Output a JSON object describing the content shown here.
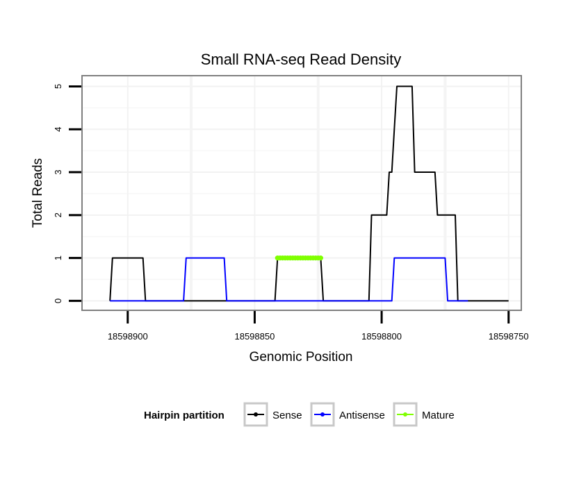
{
  "chart_data": {
    "type": "line",
    "title": "Small RNA-seq Read Density",
    "xlabel": "Genomic Position",
    "ylabel": "Total Reads",
    "xlim": [
      18598918,
      18598745
    ],
    "ylim": [
      -0.22,
      5.25
    ],
    "x_reversed": true,
    "x_ticks": [
      18598900,
      18598850,
      18598800,
      18598750
    ],
    "x_tick_labels": [
      "18598900",
      "18598850",
      "18598800",
      "18598750"
    ],
    "x_minor_gridlines": [
      18598875,
      18598825,
      18598775
    ],
    "y_ticks": [
      0,
      1,
      2,
      3,
      4,
      5
    ],
    "y_tick_labels": [
      "0",
      "1",
      "2",
      "3",
      "4",
      "5"
    ],
    "grid": true,
    "legend": {
      "title": "Hairpin partition",
      "position": "bottom",
      "entries": [
        "Sense",
        "Antisense",
        "Mature"
      ]
    },
    "series": [
      {
        "name": "Sense",
        "color": "#000000",
        "points": [
          [
            18598907,
            0
          ],
          [
            18598906,
            1
          ],
          [
            18598894,
            1
          ],
          [
            18598893,
            0
          ],
          [
            18598883,
            0
          ],
          [
            18598872,
            0
          ],
          [
            18598871,
            0
          ],
          [
            18598862,
            0
          ],
          [
            18598861,
            0
          ],
          [
            18598849,
            0
          ],
          [
            18598848,
            0
          ],
          [
            18598842,
            0
          ],
          [
            18598841,
            1
          ],
          [
            18598824,
            1
          ],
          [
            18598823,
            0
          ],
          [
            18598805,
            0
          ],
          [
            18598804,
            2
          ],
          [
            18598798,
            2
          ],
          [
            18598797,
            3
          ],
          [
            18598796,
            3
          ],
          [
            18598795,
            4
          ],
          [
            18598794,
            5
          ],
          [
            18598788,
            5
          ],
          [
            18598787,
            3
          ],
          [
            18598779,
            3
          ],
          [
            18598778,
            2
          ],
          [
            18598771,
            2
          ],
          [
            18598770,
            0
          ],
          [
            18598750,
            0
          ]
        ]
      },
      {
        "name": "Antisense",
        "color": "#0000ff",
        "points": [
          [
            18598907,
            0
          ],
          [
            18598878,
            0
          ],
          [
            18598877,
            1
          ],
          [
            18598862,
            1
          ],
          [
            18598861,
            0
          ],
          [
            18598796,
            0
          ],
          [
            18598795,
            1
          ],
          [
            18598775,
            1
          ],
          [
            18598774,
            0
          ],
          [
            18598766,
            0
          ]
        ]
      },
      {
        "name": "Mature",
        "color": "#7fff00",
        "marker": "point",
        "x_start": 18598841,
        "x_end": 18598824,
        "y": 1
      }
    ]
  }
}
